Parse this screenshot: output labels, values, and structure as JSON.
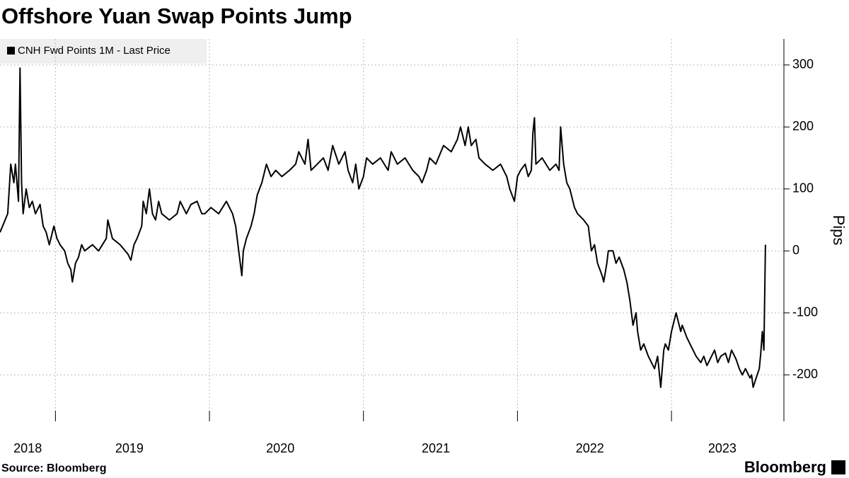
{
  "chart_data": {
    "type": "line",
    "title": "Offshore Yuan Swap Points Jump",
    "y_label": "Pips",
    "source": "Source: Bloomberg",
    "brand": "Bloomberg",
    "xlim": [
      2018.64,
      2023.73
    ],
    "ylim": [
      -275,
      342
    ],
    "yticks": [
      -200,
      -100,
      0,
      100,
      200,
      300
    ],
    "xticks": [
      {
        "value": 2018.82,
        "label": "2018"
      },
      {
        "value": 2019.48,
        "label": "2019"
      },
      {
        "value": 2020.46,
        "label": "2020"
      },
      {
        "value": 2021.47,
        "label": "2021"
      },
      {
        "value": 2022.47,
        "label": "2022"
      },
      {
        "value": 2023.33,
        "label": "2023"
      }
    ],
    "xgrid": [
      2019,
      2020,
      2021,
      2022,
      2023
    ],
    "grid": true,
    "legend": "top-left",
    "x": [
      2018.64,
      2018.69,
      2018.71,
      2018.73,
      2018.74,
      2018.76,
      2018.77,
      2018.78,
      2018.79,
      2018.81,
      2018.83,
      2018.85,
      2018.87,
      2018.9,
      2018.92,
      2018.94,
      2018.96,
      2018.99,
      2019.01,
      2019.03,
      2019.06,
      2019.08,
      2019.1,
      2019.11,
      2019.13,
      2019.15,
      2019.17,
      2019.19,
      2019.24,
      2019.28,
      2019.33,
      2019.34,
      2019.37,
      2019.42,
      2019.47,
      2019.49,
      2019.51,
      2019.53,
      2019.56,
      2019.57,
      2019.59,
      2019.61,
      2019.63,
      2019.65,
      2019.67,
      2019.69,
      2019.74,
      2019.79,
      2019.81,
      2019.83,
      2019.85,
      2019.88,
      2019.92,
      2019.95,
      2019.97,
      2020.01,
      2020.06,
      2020.11,
      2020.15,
      2020.17,
      2020.19,
      2020.21,
      2020.22,
      2020.24,
      2020.27,
      2020.29,
      2020.31,
      2020.34,
      2020.37,
      2020.4,
      2020.43,
      2020.47,
      2020.52,
      2020.56,
      2020.58,
      2020.62,
      2020.64,
      2020.66,
      2020.7,
      2020.74,
      2020.77,
      2020.8,
      2020.84,
      2020.88,
      2020.9,
      2020.93,
      2020.95,
      2020.97,
      2021.0,
      2021.02,
      2021.06,
      2021.11,
      2021.16,
      2021.18,
      2021.2,
      2021.22,
      2021.27,
      2021.32,
      2021.36,
      2021.38,
      2021.41,
      2021.43,
      2021.47,
      2021.52,
      2021.57,
      2021.61,
      2021.63,
      2021.66,
      2021.68,
      2021.7,
      2021.73,
      2021.75,
      2021.79,
      2021.84,
      2021.89,
      2021.93,
      2021.95,
      2021.98,
      2022.0,
      2022.02,
      2022.05,
      2022.07,
      2022.09,
      2022.1,
      2022.11,
      2022.12,
      2022.16,
      2022.21,
      2022.25,
      2022.27,
      2022.28,
      2022.3,
      2022.32,
      2022.34,
      2022.37,
      2022.39,
      2022.43,
      2022.46,
      2022.48,
      2022.5,
      2022.52,
      2022.55,
      2022.56,
      2022.58,
      2022.59,
      2022.62,
      2022.64,
      2022.66,
      2022.69,
      2022.71,
      2022.73,
      2022.75,
      2022.77,
      2022.78,
      2022.8,
      2022.82,
      2022.85,
      2022.87,
      2022.89,
      2022.91,
      2022.93,
      2022.95,
      2022.96,
      2022.98,
      2023.0,
      2023.03,
      2023.04,
      2023.06,
      2023.07,
      2023.1,
      2023.12,
      2023.14,
      2023.16,
      2023.19,
      2023.21,
      2023.23,
      2023.26,
      2023.28,
      2023.3,
      2023.32,
      2023.35,
      2023.37,
      2023.39,
      2023.42,
      2023.44,
      2023.46,
      2023.48,
      2023.51,
      2023.52,
      2023.53,
      2023.55,
      2023.57,
      2023.58,
      2023.59,
      2023.6,
      2023.61
    ],
    "series": [
      {
        "name": "CNH Fwd Points 1M - Last Price",
        "color": "#000000",
        "values": [
          30,
          60,
          140,
          110,
          140,
          80,
          295,
          110,
          60,
          100,
          70,
          80,
          60,
          75,
          40,
          30,
          10,
          40,
          20,
          10,
          0,
          -20,
          -30,
          -50,
          -20,
          -10,
          10,
          0,
          10,
          0,
          20,
          50,
          20,
          10,
          -5,
          -15,
          10,
          20,
          40,
          80,
          60,
          100,
          60,
          50,
          80,
          60,
          50,
          60,
          80,
          70,
          60,
          75,
          80,
          60,
          60,
          70,
          60,
          80,
          60,
          40,
          0,
          -40,
          0,
          20,
          40,
          60,
          90,
          110,
          140,
          120,
          130,
          120,
          130,
          140,
          160,
          140,
          180,
          130,
          140,
          150,
          130,
          170,
          140,
          160,
          130,
          110,
          140,
          100,
          120,
          150,
          140,
          150,
          130,
          160,
          150,
          140,
          150,
          130,
          120,
          110,
          130,
          150,
          140,
          170,
          160,
          180,
          200,
          170,
          200,
          170,
          180,
          150,
          140,
          130,
          140,
          120,
          100,
          80,
          120,
          130,
          140,
          120,
          130,
          190,
          215,
          140,
          150,
          130,
          140,
          130,
          200,
          140,
          110,
          100,
          70,
          60,
          50,
          40,
          0,
          10,
          -20,
          -40,
          -50,
          -20,
          0,
          0,
          -20,
          -10,
          -30,
          -50,
          -80,
          -120,
          -100,
          -130,
          -160,
          -150,
          -170,
          -180,
          -190,
          -170,
          -220,
          -160,
          -150,
          -160,
          -130,
          -100,
          -110,
          -130,
          -120,
          -140,
          -150,
          -160,
          -170,
          -180,
          -170,
          -185,
          -170,
          -160,
          -180,
          -170,
          -165,
          -180,
          -160,
          -175,
          -190,
          -200,
          -190,
          -205,
          -200,
          -220,
          -205,
          -190,
          -165,
          -130,
          -160,
          10
        ]
      }
    ]
  }
}
